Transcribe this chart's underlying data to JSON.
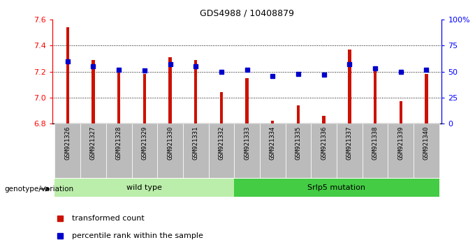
{
  "title": "GDS4988 / 10408879",
  "samples": [
    "GSM921326",
    "GSM921327",
    "GSM921328",
    "GSM921329",
    "GSM921330",
    "GSM921331",
    "GSM921332",
    "GSM921333",
    "GSM921334",
    "GSM921335",
    "GSM921336",
    "GSM921337",
    "GSM921338",
    "GSM921339",
    "GSM921340"
  ],
  "transformed_count": [
    7.54,
    7.29,
    7.21,
    7.18,
    7.31,
    7.29,
    7.04,
    7.15,
    6.82,
    6.94,
    6.86,
    7.37,
    7.21,
    6.97,
    7.18
  ],
  "percentile_rank": [
    60,
    55,
    52,
    51,
    57,
    55,
    50,
    52,
    46,
    48,
    47,
    57,
    53,
    50,
    52
  ],
  "ylim_left": [
    6.8,
    7.6
  ],
  "ylim_right": [
    0,
    100
  ],
  "yticks_left": [
    6.8,
    7.0,
    7.2,
    7.4,
    7.6
  ],
  "yticks_right": [
    0,
    25,
    50,
    75,
    100
  ],
  "ytick_labels_right": [
    "0",
    "25",
    "50",
    "75",
    "100%"
  ],
  "bar_color": "#cc1100",
  "dot_color": "#0000cc",
  "tick_bg_color": "#bbbbbb",
  "group1_label": "wild type",
  "group2_label": "Srlp5 mutation",
  "group1_color": "#bbeeaa",
  "group2_color": "#44cc44",
  "genotype_label": "genotype/variation",
  "legend1": "transformed count",
  "legend2": "percentile rank within the sample",
  "bar_width": 0.12,
  "base_value": 6.8,
  "wt_count": 7,
  "mut_count": 8
}
